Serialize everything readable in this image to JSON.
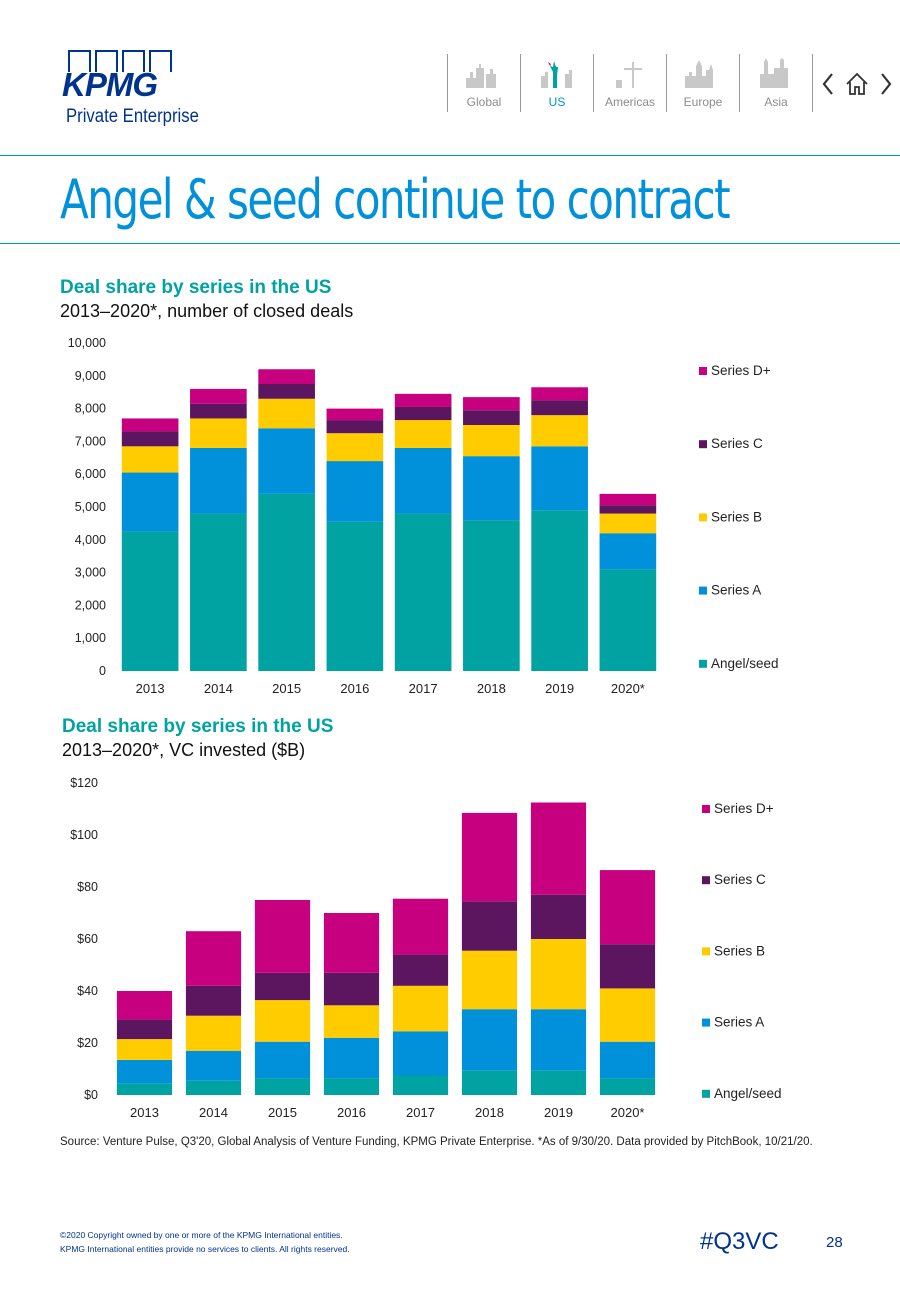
{
  "header": {
    "logo_text": "KPMG",
    "logo_subtitle": "Private Enterprise",
    "regions": [
      "Global",
      "US",
      "Americas",
      "Europe",
      "Asia"
    ],
    "active_region": "US",
    "nav_icons": [
      "chevron-left-icon",
      "home-icon",
      "chevron-right-icon"
    ]
  },
  "page": {
    "title": "Angel & seed continue to contract",
    "source": "Source: Venture Pulse, Q3'20, Global Analysis of Venture Funding, KPMG Private Enterprise. *As of 9/30/20. Data provided by PitchBook, 10/21/20.",
    "copyright_line1": "©2020 Copyright owned by one or more of the KPMG International entities.",
    "copyright_line2": "KPMG International entities provide no services to clients. All rights reserved.",
    "hashtag": "#Q3VC",
    "page_number": "28"
  },
  "colors": {
    "Angel/seed": "#00A3A1",
    "Series A": "#0091DA",
    "Series B": "#FFCC00",
    "Series C": "#5B165F",
    "Series D+": "#C6007E",
    "teal": "#00A3A1",
    "kpmg_blue": "#00338D",
    "light_blue": "#0091DA"
  },
  "chart_data": [
    {
      "type": "bar",
      "stacked": true,
      "title": "Deal share by series in the US",
      "subtitle": "2013–2020*, number of closed deals",
      "categories": [
        "2013",
        "2014",
        "2015",
        "2016",
        "2017",
        "2018",
        "2019",
        "2020*"
      ],
      "ylim": [
        0,
        10000
      ],
      "yticks": [
        "0",
        "1,000",
        "2,000",
        "3,000",
        "4,000",
        "5,000",
        "6,000",
        "7,000",
        "8,000",
        "9,000",
        "10,000"
      ],
      "legend_position": "right",
      "series": [
        {
          "name": "Angel/seed",
          "values": [
            4250,
            4800,
            5400,
            4550,
            4800,
            4600,
            4900,
            3100
          ]
        },
        {
          "name": "Series A",
          "values": [
            1800,
            2000,
            2000,
            1850,
            2000,
            1950,
            1950,
            1100
          ]
        },
        {
          "name": "Series B",
          "values": [
            800,
            900,
            900,
            850,
            850,
            950,
            950,
            600
          ]
        },
        {
          "name": "Series C",
          "values": [
            450,
            450,
            450,
            400,
            400,
            450,
            450,
            250
          ]
        },
        {
          "name": "Series D+",
          "values": [
            400,
            450,
            450,
            350,
            400,
            400,
            400,
            350
          ]
        }
      ]
    },
    {
      "type": "bar",
      "stacked": true,
      "title": "Deal share by series in the US",
      "subtitle": "2013–2020*, VC invested ($B)",
      "categories": [
        "2013",
        "2014",
        "2015",
        "2016",
        "2017",
        "2018",
        "2019",
        "2020*"
      ],
      "ylim": [
        0,
        120
      ],
      "yticks": [
        "$0",
        "$20",
        "$40",
        "$60",
        "$80",
        "$100",
        "$120"
      ],
      "legend_position": "right",
      "series": [
        {
          "name": "Angel/seed",
          "values": [
            4.5,
            5.5,
            6.5,
            6.5,
            7.5,
            9.5,
            9.5,
            6.5
          ]
        },
        {
          "name": "Series A",
          "values": [
            9,
            11.5,
            14,
            15.5,
            17,
            23.5,
            23.5,
            14
          ]
        },
        {
          "name": "Series B",
          "values": [
            8,
            13.5,
            16,
            12.5,
            17.5,
            22.5,
            27,
            20.5
          ]
        },
        {
          "name": "Series C",
          "values": [
            7.5,
            11.5,
            10.5,
            12.5,
            12,
            19,
            17,
            17
          ]
        },
        {
          "name": "Series D+",
          "values": [
            11,
            21,
            28,
            23,
            21.5,
            34,
            35.5,
            28.5
          ]
        }
      ]
    }
  ]
}
